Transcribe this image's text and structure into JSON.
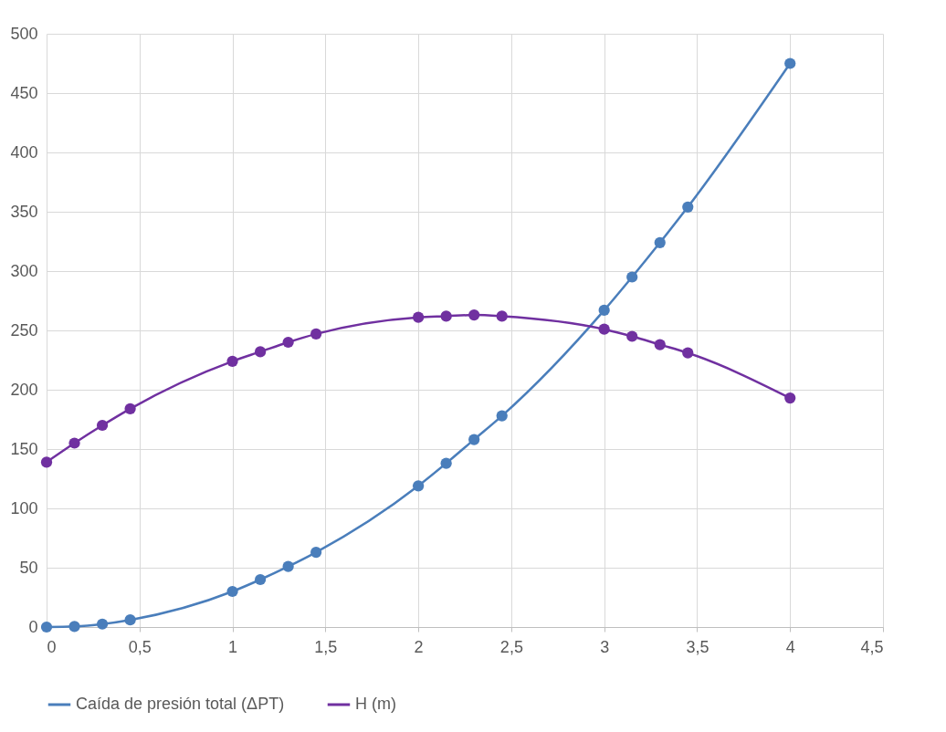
{
  "chart_data": {
    "type": "line",
    "x": [
      0,
      0.15,
      0.3,
      0.45,
      1,
      1.15,
      1.3,
      1.45,
      2,
      2.15,
      2.3,
      2.45,
      3,
      3.15,
      3.3,
      3.45,
      4
    ],
    "series": [
      {
        "name": "Caída de presión total (ΔPT)",
        "color": "#4a7ebb",
        "values": [
          0,
          0.5,
          2.5,
          6,
          30,
          40,
          51,
          63,
          119,
          138,
          158,
          178,
          267,
          295,
          324,
          354,
          475
        ]
      },
      {
        "name": "H (m)",
        "color": "#7030a0",
        "values": [
          139,
          155,
          170,
          184,
          224,
          232,
          240,
          247,
          261,
          262,
          263,
          262,
          251,
          245,
          238,
          231,
          193
        ]
      }
    ],
    "xlim": [
      0,
      4.5
    ],
    "xticks": [
      0,
      {
        "value": 0.5,
        "label": "0,5"
      },
      1,
      {
        "value": 1.5,
        "label": "1,5"
      },
      2,
      {
        "value": 2.5,
        "label": "2,5"
      },
      3,
      {
        "value": 3.5,
        "label": "3,5"
      },
      4,
      {
        "value": 4.5,
        "label": "4,5"
      }
    ],
    "ylim": [
      0,
      500
    ],
    "yticks": [
      0,
      50,
      100,
      150,
      200,
      250,
      300,
      350,
      400,
      450,
      500
    ],
    "grid": true,
    "legend": "bottom",
    "marker": "circle",
    "line_style": "solid"
  }
}
